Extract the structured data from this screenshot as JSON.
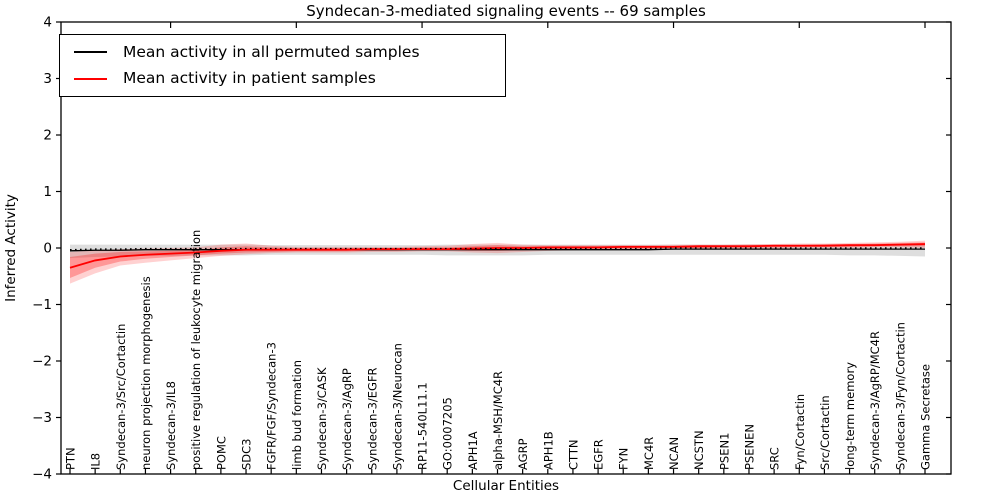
{
  "chart_data": {
    "type": "line",
    "title": "Syndecan-3-mediated signaling events -- 69 samples",
    "xlabel": "Cellular Entities",
    "ylabel": "Inferred Activity",
    "ylim": [
      -4,
      4
    ],
    "yticks": [
      4,
      3,
      2,
      1,
      0,
      -1,
      -2,
      -3,
      -4
    ],
    "grid": false,
    "legend": {
      "position": "upper left",
      "entries": [
        {
          "label": "Mean activity in all permuted samples",
          "color": "#000000"
        },
        {
          "label": "Mean activity in patient samples",
          "color": "#ff0000"
        }
      ]
    },
    "categories": [
      "PTN",
      "IL8",
      "Syndecan-3/Src/Cortactin",
      "neuron projection morphogenesis",
      "Syndecan-3/IL8",
      "positive regulation of leukocyte migration",
      "POMC",
      "SDC3",
      "FGFR/FGF/Syndecan-3",
      "limb bud formation",
      "Syndecan-3/CASK",
      "Syndecan-3/AgRP",
      "Syndecan-3/EGFR",
      "Syndecan-3/Neurocan",
      "RP11-540L11.1",
      "GO:0007205",
      "APH1A",
      "alpha-MSH/MC4R",
      "AGRP",
      "APH1B",
      "CTTN",
      "EGFR",
      "FYN",
      "MC4R",
      "NCAN",
      "NCSTN",
      "PSEN1",
      "PSENEN",
      "SRC",
      "Fyn/Cortactin",
      "Src/Cortactin",
      "long-term memory",
      "Syndecan-3/AgRP/MC4R",
      "Syndecan-3/Fyn/Cortactin",
      "Gamma Secretase"
    ],
    "series": [
      {
        "name": "Mean activity in all permuted samples",
        "color": "#000000",
        "style": "solid-with-dotted-overlay",
        "values": [
          -0.05,
          -0.04,
          -0.04,
          -0.03,
          -0.03,
          -0.03,
          -0.03,
          -0.03,
          -0.03,
          -0.03,
          -0.03,
          -0.03,
          -0.03,
          -0.03,
          -0.03,
          -0.03,
          -0.03,
          -0.03,
          -0.03,
          -0.03,
          -0.03,
          -0.03,
          -0.03,
          -0.03,
          -0.02,
          -0.02,
          -0.02,
          -0.02,
          -0.02,
          -0.02,
          -0.02,
          -0.02,
          -0.02,
          -0.02,
          -0.02
        ]
      },
      {
        "name": "Mean activity in patient samples",
        "color": "#ff0000",
        "style": "solid",
        "values": [
          -0.35,
          -0.22,
          -0.15,
          -0.12,
          -0.1,
          -0.08,
          -0.05,
          -0.03,
          -0.03,
          -0.03,
          -0.03,
          -0.03,
          -0.02,
          -0.02,
          -0.02,
          -0.02,
          -0.01,
          0.0,
          0.0,
          0.01,
          0.01,
          0.01,
          0.02,
          0.02,
          0.02,
          0.03,
          0.03,
          0.03,
          0.04,
          0.04,
          0.04,
          0.05,
          0.05,
          0.06,
          0.07
        ]
      }
    ],
    "bands": [
      {
        "name": "permuted-samples-range",
        "color": "rgba(0,0,0,0.13)",
        "upper": [
          0.06,
          0.06,
          0.06,
          0.06,
          0.06,
          0.06,
          0.06,
          0.06,
          0.05,
          0.05,
          0.05,
          0.05,
          0.05,
          0.05,
          0.05,
          0.06,
          0.06,
          0.06,
          0.06,
          0.06,
          0.06,
          0.06,
          0.06,
          0.06,
          0.06,
          0.06,
          0.06,
          0.06,
          0.06,
          0.06,
          0.06,
          0.06,
          0.07,
          0.07,
          0.08
        ],
        "lower": [
          -0.18,
          -0.16,
          -0.15,
          -0.14,
          -0.14,
          -0.13,
          -0.13,
          -0.13,
          -0.12,
          -0.12,
          -0.12,
          -0.12,
          -0.12,
          -0.12,
          -0.12,
          -0.13,
          -0.13,
          -0.13,
          -0.13,
          -0.12,
          -0.12,
          -0.12,
          -0.12,
          -0.12,
          -0.12,
          -0.12,
          -0.12,
          -0.12,
          -0.12,
          -0.12,
          -0.12,
          -0.13,
          -0.13,
          -0.14,
          -0.15
        ]
      },
      {
        "name": "patient-samples-range-outer",
        "color": "rgba(255,0,0,0.18)",
        "upper": [
          -0.07,
          -0.04,
          -0.02,
          -0.01,
          0.0,
          0.01,
          0.06,
          0.08,
          0.04,
          0.02,
          0.02,
          0.02,
          0.02,
          0.02,
          0.03,
          0.04,
          0.07,
          0.09,
          0.06,
          0.05,
          0.05,
          0.05,
          0.05,
          0.05,
          0.06,
          0.06,
          0.06,
          0.07,
          0.07,
          0.08,
          0.08,
          0.09,
          0.1,
          0.11,
          0.13
        ],
        "lower": [
          -0.63,
          -0.45,
          -0.31,
          -0.26,
          -0.22,
          -0.18,
          -0.14,
          -0.11,
          -0.09,
          -0.08,
          -0.08,
          -0.08,
          -0.07,
          -0.07,
          -0.06,
          -0.06,
          -0.08,
          -0.09,
          -0.07,
          -0.05,
          -0.04,
          -0.03,
          -0.03,
          -0.02,
          -0.02,
          -0.02,
          -0.01,
          -0.01,
          -0.01,
          0.0,
          0.0,
          0.0,
          0.01,
          0.01,
          0.0
        ]
      },
      {
        "name": "patient-samples-range-inner",
        "color": "rgba(255,0,0,0.28)",
        "upper": [
          -0.16,
          -0.1,
          -0.07,
          -0.06,
          -0.05,
          -0.04,
          0.01,
          0.03,
          0.01,
          0.0,
          0.0,
          0.0,
          0.0,
          0.0,
          0.01,
          0.01,
          0.03,
          0.05,
          0.03,
          0.03,
          0.03,
          0.03,
          0.04,
          0.04,
          0.04,
          0.05,
          0.05,
          0.05,
          0.06,
          0.06,
          0.07,
          0.07,
          0.08,
          0.09,
          0.1
        ],
        "lower": [
          -0.53,
          -0.35,
          -0.24,
          -0.19,
          -0.16,
          -0.13,
          -0.1,
          -0.08,
          -0.07,
          -0.06,
          -0.06,
          -0.06,
          -0.05,
          -0.05,
          -0.04,
          -0.04,
          -0.05,
          -0.05,
          -0.04,
          -0.02,
          -0.02,
          -0.01,
          -0.01,
          -0.01,
          0.0,
          0.0,
          0.01,
          0.01,
          0.01,
          0.02,
          0.02,
          0.02,
          0.03,
          0.03,
          0.03
        ]
      }
    ],
    "top_tick_indices": [
      4,
      9,
      14,
      19,
      24,
      29,
      34
    ]
  }
}
